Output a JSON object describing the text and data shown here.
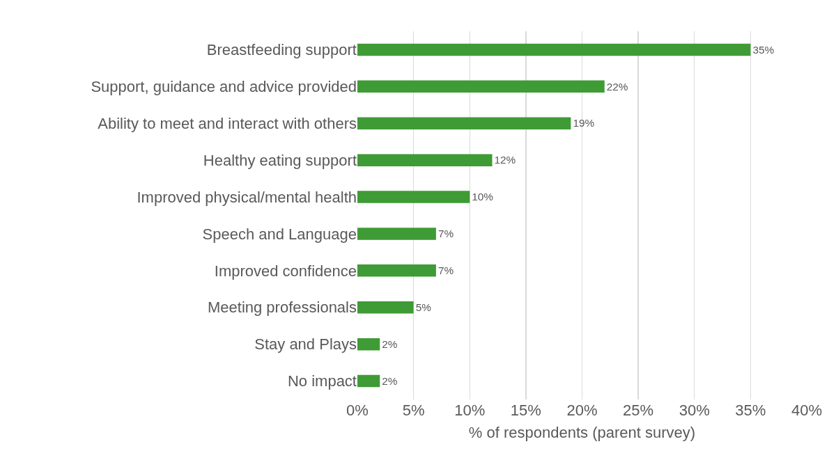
{
  "chart_data": {
    "type": "bar",
    "orientation": "horizontal",
    "categories": [
      "Breastfeeding support",
      "Support, guidance and advice provided",
      "Ability to meet and interact with others",
      "Healthy eating support",
      "Improved physical/mental health",
      "Speech and Language",
      "Improved confidence",
      "Meeting professionals",
      "Stay and Plays",
      "No impact"
    ],
    "values": [
      35,
      22,
      19,
      12,
      10,
      7,
      7,
      5,
      2,
      2
    ],
    "value_labels": [
      "35%",
      "22%",
      "19%",
      "12%",
      "10%",
      "7%",
      "7%",
      "5%",
      "2%",
      "2%"
    ],
    "color": "#3f9b35",
    "xlabel": "% of respondents (parent survey)",
    "xlim": [
      0,
      40
    ],
    "xticks": [
      {
        "value": 0,
        "label": "0%"
      },
      {
        "value": 5,
        "label": "5%"
      },
      {
        "value": 10,
        "label": "10%"
      },
      {
        "value": 15,
        "label": "15%"
      },
      {
        "value": 20,
        "label": "20%"
      },
      {
        "value": 25,
        "label": "25%"
      },
      {
        "value": 30,
        "label": "30%"
      },
      {
        "value": 35,
        "label": "35%"
      },
      {
        "value": 40,
        "label": "40%"
      }
    ],
    "grid": "x",
    "legend": false
  }
}
